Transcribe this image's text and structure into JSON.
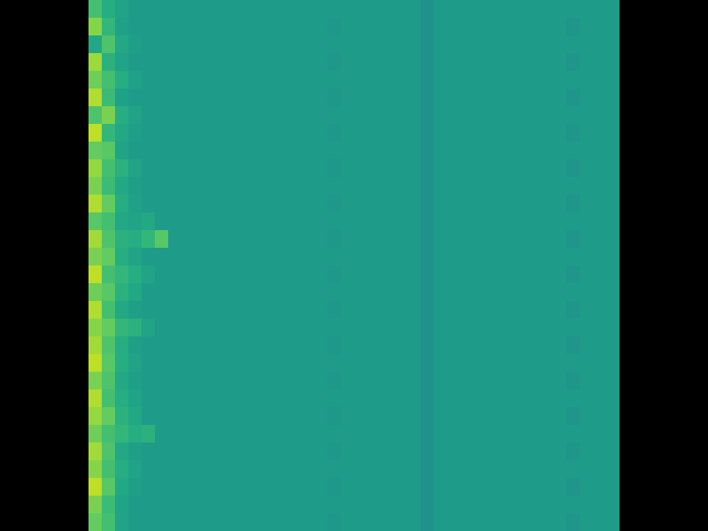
{
  "chart_data": {
    "type": "heatmap",
    "color": "viridis",
    "tick_labels": false,
    "zlim": [
      0,
      100
    ],
    "cells": [
      [
        70,
        62,
        58,
        55,
        55,
        55,
        55,
        55,
        55,
        55,
        55,
        55,
        55,
        55,
        55,
        55,
        55,
        55,
        55,
        55,
        55,
        55,
        55,
        55,
        55,
        50,
        55,
        55,
        55,
        55,
        55,
        55,
        55,
        55,
        55,
        55,
        55,
        55,
        55,
        55
      ],
      [
        82,
        66,
        57,
        55,
        55,
        55,
        55,
        55,
        55,
        55,
        55,
        55,
        55,
        55,
        55,
        55,
        55,
        55,
        53,
        55,
        55,
        55,
        55,
        55,
        55,
        50,
        55,
        55,
        55,
        55,
        55,
        55,
        55,
        55,
        55,
        55,
        52,
        55,
        55,
        55
      ],
      [
        60,
        72,
        60,
        56,
        55,
        55,
        55,
        55,
        55,
        55,
        55,
        55,
        55,
        55,
        55,
        55,
        55,
        55,
        55,
        55,
        55,
        55,
        55,
        55,
        55,
        50,
        55,
        55,
        55,
        55,
        55,
        55,
        55,
        55,
        55,
        55,
        55,
        55,
        55,
        55
      ],
      [
        85,
        64,
        58,
        55,
        55,
        55,
        55,
        55,
        55,
        55,
        55,
        55,
        55,
        55,
        55,
        55,
        55,
        55,
        53,
        55,
        55,
        55,
        55,
        55,
        55,
        50,
        55,
        55,
        55,
        55,
        55,
        55,
        55,
        55,
        55,
        55,
        52,
        55,
        55,
        55
      ],
      [
        78,
        70,
        62,
        57,
        55,
        55,
        55,
        55,
        55,
        55,
        55,
        55,
        55,
        55,
        55,
        55,
        55,
        55,
        55,
        55,
        55,
        55,
        55,
        55,
        55,
        50,
        55,
        55,
        55,
        55,
        55,
        55,
        55,
        55,
        55,
        55,
        55,
        55,
        55,
        55
      ],
      [
        88,
        68,
        57,
        55,
        55,
        55,
        55,
        55,
        55,
        55,
        55,
        55,
        55,
        55,
        55,
        55,
        55,
        55,
        53,
        55,
        55,
        55,
        55,
        55,
        55,
        50,
        55,
        55,
        55,
        55,
        55,
        55,
        55,
        55,
        55,
        55,
        52,
        55,
        55,
        55
      ],
      [
        72,
        80,
        62,
        58,
        55,
        55,
        55,
        55,
        55,
        55,
        55,
        55,
        55,
        55,
        55,
        55,
        55,
        55,
        55,
        55,
        55,
        55,
        55,
        55,
        55,
        50,
        55,
        55,
        55,
        55,
        55,
        55,
        55,
        55,
        55,
        55,
        55,
        55,
        55,
        55
      ],
      [
        90,
        66,
        60,
        56,
        55,
        55,
        55,
        55,
        55,
        55,
        55,
        55,
        55,
        55,
        55,
        55,
        55,
        55,
        53,
        55,
        55,
        55,
        55,
        55,
        55,
        50,
        55,
        55,
        55,
        55,
        55,
        55,
        55,
        55,
        55,
        55,
        52,
        55,
        55,
        55
      ],
      [
        76,
        74,
        58,
        55,
        55,
        55,
        55,
        55,
        55,
        55,
        55,
        55,
        55,
        55,
        55,
        55,
        55,
        55,
        55,
        55,
        55,
        55,
        55,
        55,
        55,
        50,
        55,
        55,
        55,
        55,
        55,
        55,
        55,
        55,
        55,
        55,
        55,
        55,
        55,
        55
      ],
      [
        84,
        70,
        64,
        58,
        55,
        55,
        55,
        55,
        55,
        55,
        55,
        55,
        55,
        55,
        55,
        55,
        55,
        55,
        53,
        55,
        55,
        55,
        55,
        55,
        55,
        50,
        55,
        55,
        55,
        55,
        55,
        55,
        55,
        55,
        55,
        55,
        52,
        55,
        55,
        55
      ],
      [
        80,
        68,
        60,
        56,
        55,
        55,
        55,
        55,
        55,
        55,
        55,
        55,
        55,
        55,
        55,
        55,
        55,
        55,
        55,
        55,
        55,
        55,
        55,
        55,
        55,
        50,
        55,
        55,
        55,
        55,
        55,
        55,
        55,
        55,
        55,
        55,
        55,
        55,
        55,
        55
      ],
      [
        88,
        76,
        62,
        57,
        55,
        55,
        55,
        55,
        55,
        55,
        55,
        55,
        55,
        55,
        55,
        55,
        55,
        55,
        53,
        55,
        55,
        55,
        55,
        55,
        55,
        50,
        55,
        55,
        55,
        55,
        55,
        55,
        55,
        55,
        55,
        55,
        52,
        55,
        55,
        55
      ],
      [
        74,
        70,
        60,
        58,
        60,
        55,
        55,
        55,
        55,
        55,
        55,
        55,
        55,
        55,
        55,
        55,
        55,
        55,
        55,
        55,
        55,
        55,
        55,
        55,
        55,
        50,
        55,
        55,
        55,
        55,
        55,
        55,
        55,
        55,
        55,
        55,
        55,
        55,
        55,
        55
      ],
      [
        86,
        72,
        64,
        62,
        66,
        74,
        55,
        55,
        55,
        55,
        55,
        55,
        55,
        55,
        55,
        55,
        55,
        55,
        53,
        55,
        55,
        55,
        55,
        55,
        55,
        50,
        55,
        55,
        55,
        55,
        55,
        55,
        55,
        55,
        55,
        55,
        52,
        55,
        55,
        55
      ],
      [
        80,
        76,
        62,
        58,
        55,
        55,
        55,
        55,
        55,
        55,
        55,
        55,
        55,
        55,
        55,
        55,
        55,
        55,
        55,
        55,
        55,
        55,
        55,
        55,
        55,
        50,
        55,
        55,
        55,
        55,
        55,
        55,
        55,
        55,
        55,
        55,
        55,
        55,
        55,
        55
      ],
      [
        90,
        70,
        66,
        62,
        58,
        55,
        55,
        55,
        55,
        55,
        55,
        55,
        55,
        55,
        55,
        55,
        55,
        55,
        53,
        55,
        55,
        55,
        55,
        55,
        55,
        50,
        55,
        55,
        55,
        55,
        55,
        55,
        55,
        55,
        55,
        55,
        52,
        55,
        55,
        55
      ],
      [
        78,
        74,
        64,
        60,
        55,
        55,
        55,
        55,
        55,
        55,
        55,
        55,
        55,
        55,
        55,
        55,
        55,
        55,
        55,
        55,
        55,
        55,
        55,
        55,
        55,
        50,
        55,
        55,
        55,
        55,
        55,
        55,
        55,
        55,
        55,
        55,
        55,
        55,
        55,
        55
      ],
      [
        88,
        70,
        60,
        56,
        55,
        55,
        55,
        55,
        55,
        55,
        55,
        55,
        55,
        55,
        55,
        55,
        55,
        55,
        53,
        55,
        55,
        55,
        55,
        55,
        55,
        50,
        55,
        55,
        55,
        55,
        55,
        55,
        55,
        55,
        55,
        55,
        52,
        55,
        55,
        55
      ],
      [
        82,
        76,
        66,
        64,
        58,
        55,
        55,
        55,
        55,
        55,
        55,
        55,
        55,
        55,
        55,
        55,
        55,
        55,
        55,
        55,
        55,
        55,
        55,
        55,
        55,
        50,
        55,
        55,
        55,
        55,
        55,
        55,
        55,
        55,
        55,
        55,
        55,
        55,
        55,
        55
      ],
      [
        86,
        72,
        62,
        56,
        55,
        55,
        55,
        55,
        55,
        55,
        55,
        55,
        55,
        55,
        55,
        55,
        55,
        55,
        53,
        55,
        55,
        55,
        55,
        55,
        55,
        50,
        55,
        55,
        55,
        55,
        55,
        55,
        55,
        55,
        55,
        55,
        52,
        55,
        55,
        55
      ],
      [
        90,
        74,
        62,
        58,
        55,
        55,
        55,
        55,
        55,
        55,
        55,
        55,
        55,
        55,
        55,
        55,
        55,
        55,
        55,
        55,
        55,
        55,
        55,
        55,
        55,
        50,
        55,
        55,
        55,
        55,
        55,
        55,
        55,
        55,
        55,
        55,
        55,
        55,
        55,
        55
      ],
      [
        80,
        72,
        60,
        56,
        55,
        55,
        55,
        55,
        55,
        55,
        55,
        55,
        55,
        55,
        55,
        55,
        55,
        55,
        53,
        55,
        55,
        55,
        55,
        55,
        55,
        50,
        55,
        55,
        55,
        55,
        55,
        55,
        55,
        55,
        55,
        55,
        52,
        55,
        55,
        55
      ],
      [
        88,
        70,
        62,
        58,
        55,
        55,
        55,
        55,
        55,
        55,
        55,
        55,
        55,
        55,
        55,
        55,
        55,
        55,
        55,
        55,
        55,
        55,
        55,
        55,
        55,
        50,
        55,
        55,
        55,
        55,
        55,
        55,
        55,
        55,
        55,
        55,
        55,
        55,
        55,
        55
      ],
      [
        84,
        76,
        64,
        60,
        55,
        55,
        55,
        55,
        55,
        55,
        55,
        55,
        55,
        55,
        55,
        55,
        55,
        55,
        53,
        55,
        55,
        55,
        55,
        55,
        55,
        50,
        55,
        55,
        55,
        55,
        55,
        55,
        55,
        55,
        55,
        55,
        52,
        55,
        55,
        55
      ],
      [
        78,
        70,
        66,
        62,
        64,
        55,
        55,
        55,
        55,
        55,
        55,
        55,
        55,
        55,
        55,
        55,
        55,
        55,
        55,
        55,
        55,
        55,
        55,
        55,
        55,
        50,
        55,
        55,
        55,
        55,
        55,
        55,
        55,
        55,
        55,
        55,
        55,
        55,
        55,
        55
      ],
      [
        86,
        72,
        60,
        56,
        55,
        55,
        55,
        55,
        55,
        55,
        55,
        55,
        55,
        55,
        55,
        55,
        55,
        55,
        53,
        55,
        55,
        55,
        55,
        55,
        55,
        50,
        55,
        55,
        55,
        55,
        55,
        55,
        55,
        55,
        55,
        55,
        52,
        55,
        55,
        55
      ],
      [
        82,
        70,
        62,
        58,
        55,
        55,
        55,
        55,
        55,
        55,
        55,
        55,
        55,
        55,
        55,
        55,
        55,
        55,
        55,
        55,
        55,
        55,
        55,
        55,
        55,
        50,
        55,
        55,
        55,
        55,
        55,
        55,
        55,
        55,
        55,
        55,
        55,
        55,
        55,
        55
      ],
      [
        90,
        74,
        60,
        56,
        55,
        55,
        55,
        55,
        55,
        55,
        55,
        55,
        55,
        55,
        55,
        55,
        55,
        55,
        53,
        55,
        55,
        55,
        55,
        55,
        55,
        50,
        55,
        55,
        55,
        55,
        55,
        55,
        55,
        55,
        55,
        55,
        52,
        55,
        55,
        55
      ],
      [
        80,
        68,
        58,
        55,
        55,
        55,
        55,
        55,
        55,
        55,
        55,
        55,
        55,
        55,
        55,
        55,
        55,
        55,
        55,
        55,
        55,
        55,
        55,
        55,
        55,
        50,
        55,
        55,
        55,
        55,
        55,
        55,
        55,
        55,
        55,
        55,
        55,
        55,
        55,
        55
      ],
      [
        76,
        70,
        58,
        55,
        55,
        55,
        55,
        55,
        55,
        55,
        55,
        55,
        55,
        55,
        55,
        55,
        55,
        55,
        53,
        55,
        55,
        55,
        55,
        55,
        55,
        50,
        55,
        55,
        55,
        55,
        55,
        55,
        55,
        55,
        55,
        55,
        52,
        55,
        55,
        55
      ]
    ]
  }
}
